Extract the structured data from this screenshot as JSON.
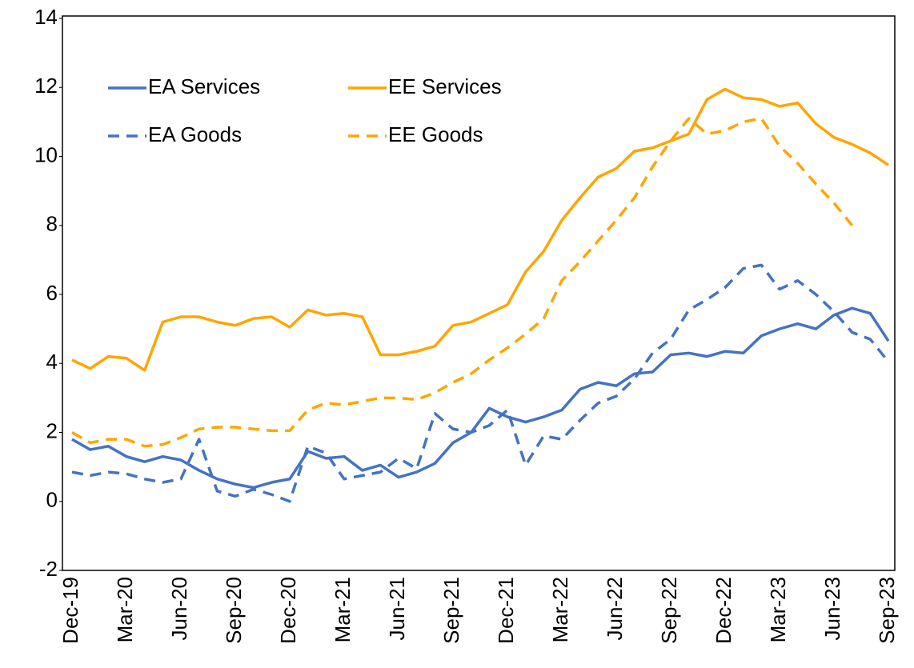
{
  "chart_data": {
    "type": "line",
    "categories": [
      "Dec-19",
      null,
      null,
      "Mar-20",
      null,
      null,
      "Jun-20",
      null,
      null,
      "Sep-20",
      null,
      null,
      "Dec-20",
      null,
      null,
      "Mar-21",
      null,
      null,
      "Jun-21",
      null,
      null,
      "Sep-21",
      null,
      null,
      "Dec-21",
      null,
      null,
      "Mar-22",
      null,
      null,
      "Jun-22",
      null,
      null,
      "Sep-22",
      null,
      null,
      "Dec-22",
      null,
      null,
      "Mar-23",
      null,
      null,
      "Jun-23",
      null,
      null,
      "Sep-23"
    ],
    "series": [
      {
        "name": "EA Services",
        "color": "#4472c4",
        "dashed": false,
        "values": [
          1.8,
          1.5,
          1.6,
          1.3,
          1.15,
          1.3,
          1.2,
          0.9,
          0.65,
          0.5,
          0.4,
          0.55,
          0.65,
          1.45,
          1.25,
          1.3,
          0.9,
          1.05,
          0.7,
          0.85,
          1.1,
          1.7,
          2.0,
          2.7,
          2.45,
          2.3,
          2.45,
          2.65,
          3.25,
          3.45,
          3.35,
          3.7,
          3.75,
          4.25,
          4.3,
          4.2,
          4.35,
          4.3,
          4.8,
          5.0,
          5.15,
          5.0,
          5.4,
          5.6,
          5.45,
          4.65
        ]
      },
      {
        "name": "EE Services",
        "color": "#ffa500",
        "dashed": false,
        "values": [
          4.1,
          3.85,
          4.2,
          4.15,
          3.8,
          5.2,
          5.35,
          5.35,
          5.2,
          5.1,
          5.3,
          5.35,
          5.05,
          5.55,
          5.4,
          5.45,
          5.35,
          4.25,
          4.25,
          4.35,
          4.5,
          5.1,
          5.2,
          5.45,
          5.7,
          6.65,
          7.25,
          8.15,
          8.8,
          9.4,
          9.65,
          10.15,
          10.25,
          10.45,
          10.65,
          11.65,
          11.95,
          11.7,
          11.65,
          11.45,
          11.55,
          10.95,
          10.55,
          10.35,
          10.1,
          9.75
        ]
      },
      {
        "name": "EA Goods",
        "color": "#4472c4",
        "dashed": true,
        "values": [
          0.85,
          0.75,
          0.85,
          0.8,
          0.65,
          0.55,
          0.65,
          1.8,
          0.3,
          0.15,
          0.35,
          0.2,
          0.0,
          1.6,
          1.4,
          0.65,
          0.75,
          0.85,
          1.25,
          0.95,
          2.55,
          2.1,
          2.0,
          2.2,
          2.65,
          1.05,
          1.9,
          1.8,
          2.35,
          2.85,
          3.05,
          3.55,
          4.3,
          4.7,
          5.55,
          5.85,
          6.2,
          6.75,
          6.85,
          6.15,
          6.4,
          6.0,
          5.5,
          4.9,
          4.7,
          4.05
        ]
      },
      {
        "name": "EE Goods",
        "color": "#ffa500",
        "dashed": true,
        "values": [
          2.0,
          1.7,
          1.8,
          1.8,
          1.6,
          1.65,
          1.85,
          2.1,
          2.15,
          2.15,
          2.1,
          2.05,
          2.05,
          2.65,
          2.85,
          2.8,
          2.9,
          3.0,
          3.0,
          2.95,
          3.15,
          3.45,
          3.7,
          4.1,
          4.45,
          4.85,
          5.3,
          6.4,
          6.95,
          7.55,
          8.15,
          8.8,
          9.7,
          10.45,
          11.1,
          10.65,
          10.75,
          11.0,
          11.1,
          10.3,
          9.8,
          9.2,
          8.65,
          8.0,
          null,
          null
        ]
      }
    ],
    "ylim": [
      -2,
      14
    ],
    "yticks": [
      -2,
      0,
      2,
      4,
      6,
      8,
      10,
      12,
      14
    ],
    "legend": "top-left"
  }
}
